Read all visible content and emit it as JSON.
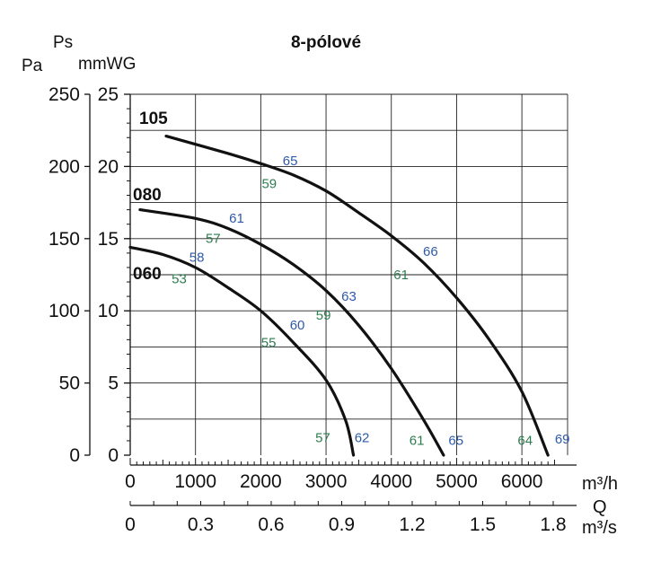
{
  "chart_data": {
    "type": "line",
    "title": "8-pólové",
    "y_left_unit": "Pa",
    "y_right_unit_top": "Ps",
    "y_right_unit": "mmWG",
    "x_unit_top": "m³/h",
    "x_label": "Q",
    "x_unit_bottom": "m³/s",
    "xlim": [
      0,
      6700
    ],
    "ylim_pa": [
      0,
      250
    ],
    "ylim_mmwg": [
      0,
      25
    ],
    "x_ticks_m3h": [
      "0",
      "1000",
      "2000",
      "3000",
      "4000",
      "5000",
      "6000"
    ],
    "x_ticks_m3s": [
      "0",
      "0.3",
      "0.6",
      "0.9",
      "1.2",
      "1.5",
      "1.8"
    ],
    "y_ticks_pa": [
      "0",
      "50",
      "100",
      "150",
      "200",
      "250"
    ],
    "y_ticks_mmwg": [
      "0",
      "5",
      "10",
      "15",
      "20",
      "25"
    ],
    "grid": true,
    "series": [
      {
        "name": "060",
        "points": [
          [
            0,
            144
          ],
          [
            500,
            139
          ],
          [
            1000,
            130
          ],
          [
            1500,
            116
          ],
          [
            2000,
            100
          ],
          [
            2500,
            78
          ],
          [
            3000,
            52
          ],
          [
            3300,
            24
          ],
          [
            3420,
            0
          ]
        ]
      },
      {
        "name": "080",
        "points": [
          [
            150,
            170
          ],
          [
            1000,
            164
          ],
          [
            1500,
            157
          ],
          [
            2000,
            146
          ],
          [
            2500,
            132
          ],
          [
            3000,
            114
          ],
          [
            3500,
            90
          ],
          [
            4000,
            60
          ],
          [
            4500,
            24
          ],
          [
            4800,
            0
          ]
        ]
      },
      {
        "name": "105",
        "points": [
          [
            550,
            221
          ],
          [
            1500,
            209
          ],
          [
            2000,
            202
          ],
          [
            2500,
            194
          ],
          [
            3000,
            183
          ],
          [
            3500,
            168
          ],
          [
            4000,
            152
          ],
          [
            4500,
            133
          ],
          [
            5000,
            109
          ],
          [
            5500,
            80
          ],
          [
            6000,
            44
          ],
          [
            6400,
            0
          ]
        ]
      }
    ],
    "annotations": [
      {
        "text": "53",
        "x": 750,
        "y": 119,
        "color": "#2e7d4f"
      },
      {
        "text": "58",
        "x": 1020,
        "y": 134,
        "color": "#2f5aa8"
      },
      {
        "text": "57",
        "x": 1270,
        "y": 147,
        "color": "#2e7d4f"
      },
      {
        "text": "61",
        "x": 1630,
        "y": 161,
        "color": "#2f5aa8"
      },
      {
        "text": "59",
        "x": 2130,
        "y": 185,
        "color": "#2e7d4f"
      },
      {
        "text": "65",
        "x": 2450,
        "y": 201,
        "color": "#2f5aa8"
      },
      {
        "text": "55",
        "x": 2120,
        "y": 75,
        "color": "#2e7d4f"
      },
      {
        "text": "60",
        "x": 2560,
        "y": 87,
        "color": "#2f5aa8"
      },
      {
        "text": "59",
        "x": 2960,
        "y": 94,
        "color": "#2e7d4f"
      },
      {
        "text": "63",
        "x": 3350,
        "y": 107,
        "color": "#2f5aa8"
      },
      {
        "text": "61",
        "x": 4150,
        "y": 122,
        "color": "#2e7d4f"
      },
      {
        "text": "66",
        "x": 4600,
        "y": 138,
        "color": "#2f5aa8"
      },
      {
        "text": "57",
        "x": 2950,
        "y": 9,
        "color": "#2e7d4f"
      },
      {
        "text": "62",
        "x": 3550,
        "y": 9,
        "color": "#2f5aa8"
      },
      {
        "text": "61",
        "x": 4390,
        "y": 7,
        "color": "#2e7d4f"
      },
      {
        "text": "65",
        "x": 4990,
        "y": 7,
        "color": "#2f5aa8"
      },
      {
        "text": "64",
        "x": 6050,
        "y": 7,
        "color": "#2e7d4f"
      },
      {
        "text": "69",
        "x": 6620,
        "y": 8,
        "color": "#2f5aa8"
      }
    ]
  }
}
